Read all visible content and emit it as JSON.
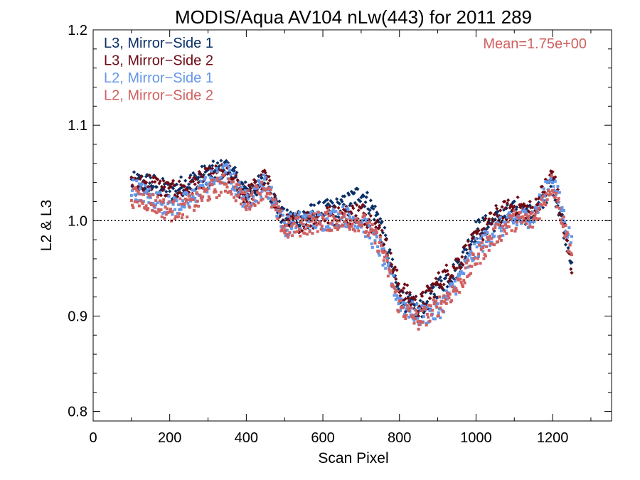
{
  "chart_data": {
    "type": "scatter",
    "title": "MODIS/Aqua AV104 nLw(443) for 2011 289",
    "xlabel": "Scan Pixel",
    "ylabel": "L2 & L3",
    "xlim": [
      0,
      1354
    ],
    "ylim": [
      0.79,
      1.2
    ],
    "xticks": [
      0,
      200,
      400,
      600,
      800,
      1000,
      1200
    ],
    "xtick_labels": [
      "0",
      "200",
      "400",
      "600",
      "800",
      "1000",
      "1200"
    ],
    "yticks": [
      0.8,
      0.9,
      1.0,
      1.1,
      1.2
    ],
    "ytick_labels": [
      "0.8",
      "0.9",
      "1.0",
      "1.1",
      "1.2"
    ],
    "reference_line": 1.0,
    "annotation": "Mean=1.75e+00",
    "annotation_color": "#d06060",
    "legend_position": "top-left",
    "series": [
      {
        "name": "L3, Mirror−Side 1",
        "color": "#0b2f66",
        "marker": "diamond",
        "x": [
          100,
          150,
          200,
          250,
          300,
          350,
          400,
          450,
          500,
          550,
          600,
          650,
          700,
          750,
          800,
          850,
          900,
          950,
          1000,
          1050,
          1100,
          1150,
          1200,
          1250
        ],
        "y": [
          1.04,
          1.04,
          1.03,
          1.04,
          1.05,
          1.055,
          1.03,
          1.04,
          1.0,
          1.005,
          1.01,
          1.015,
          1.03,
          1.0,
          0.92,
          0.905,
          0.93,
          0.95,
          0.99,
          1.0,
          1.01,
          1.005,
          1.04,
          0.96
        ]
      },
      {
        "name": "L3, Mirror−Side 2",
        "color": "#6e0a14",
        "marker": "diamond",
        "x": [
          100,
          150,
          200,
          250,
          300,
          350,
          400,
          450,
          500,
          550,
          600,
          650,
          700,
          750,
          800,
          850,
          900,
          950,
          1000,
          1050,
          1100,
          1150,
          1200,
          1250
        ],
        "y": [
          1.035,
          1.04,
          1.03,
          1.035,
          1.045,
          1.05,
          1.025,
          1.045,
          0.995,
          1.0,
          1.005,
          1.005,
          1.01,
          0.99,
          0.93,
          0.91,
          0.935,
          0.955,
          0.98,
          1.005,
          1.015,
          1.01,
          1.05,
          0.95
        ]
      },
      {
        "name": "L2, Mirror−Side 1",
        "color": "#6497e8",
        "marker": "square",
        "x": [
          100,
          150,
          200,
          250,
          300,
          350,
          400,
          450,
          500,
          550,
          600,
          650,
          700,
          750,
          800,
          850,
          900,
          950,
          1000,
          1050,
          1100,
          1150,
          1200,
          1250
        ],
        "y": [
          1.035,
          1.025,
          1.015,
          1.02,
          1.04,
          1.05,
          1.02,
          1.04,
          0.995,
          1.0,
          1.0,
          1.005,
          1.0,
          0.97,
          0.915,
          0.9,
          0.905,
          0.935,
          0.97,
          0.99,
          1.0,
          1.005,
          1.045,
          0.975
        ]
      },
      {
        "name": "L2, Mirror−Side 2",
        "color": "#d06060",
        "marker": "square",
        "x": [
          100,
          150,
          200,
          250,
          300,
          350,
          400,
          450,
          500,
          550,
          600,
          650,
          700,
          750,
          800,
          850,
          900,
          950,
          1000,
          1050,
          1100,
          1150,
          1200,
          1250
        ],
        "y": [
          1.025,
          1.02,
          1.01,
          1.015,
          1.03,
          1.04,
          1.02,
          1.035,
          0.99,
          0.995,
          1.0,
          1.0,
          1.0,
          0.975,
          0.91,
          0.895,
          0.91,
          0.93,
          0.96,
          0.985,
          1.0,
          1.0,
          1.04,
          0.965
        ]
      }
    ]
  }
}
